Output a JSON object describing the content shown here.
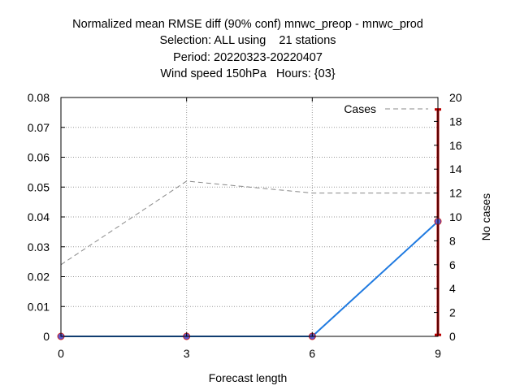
{
  "chart_data": {
    "type": "line",
    "title_lines": [
      "Normalized mean RMSE diff (90% conf) mnwc_preop - mnwc_prod",
      "Selection: ALL using    21 stations",
      "Period: 20220323-20220407",
      "Wind speed 150hPa   Hours: {03}"
    ],
    "xlabel": "Forecast length",
    "ylabel": "",
    "y2label": "No cases",
    "x": [
      0,
      3,
      6,
      9
    ],
    "xlim": [
      0,
      9
    ],
    "x_ticks": [
      "0",
      "3",
      "6",
      "9"
    ],
    "ylim": [
      0,
      0.08
    ],
    "y_ticks": [
      "0",
      "0.01",
      "0.02",
      "0.03",
      "0.04",
      "0.05",
      "0.06",
      "0.07",
      "0.08"
    ],
    "y2lim": [
      0,
      20
    ],
    "y2_ticks": [
      "0",
      "2",
      "4",
      "6",
      "8",
      "10",
      "12",
      "14",
      "16",
      "18",
      "20"
    ],
    "grid": true,
    "legend_position": "top-right",
    "series": [
      {
        "values": [
          0,
          0,
          0,
          0.0385
        ],
        "color": "#1f7ae0",
        "marker_color": "#5a5ad0",
        "axis": "left"
      },
      {
        "name": "Cases",
        "values": [
          6,
          13,
          12,
          12
        ],
        "color": "#888888",
        "dashed": true,
        "axis": "right"
      }
    ],
    "error_bars": [
      {
        "x": 9,
        "low": 0.0005,
        "high": 0.076,
        "color": "#bb0000"
      }
    ]
  }
}
